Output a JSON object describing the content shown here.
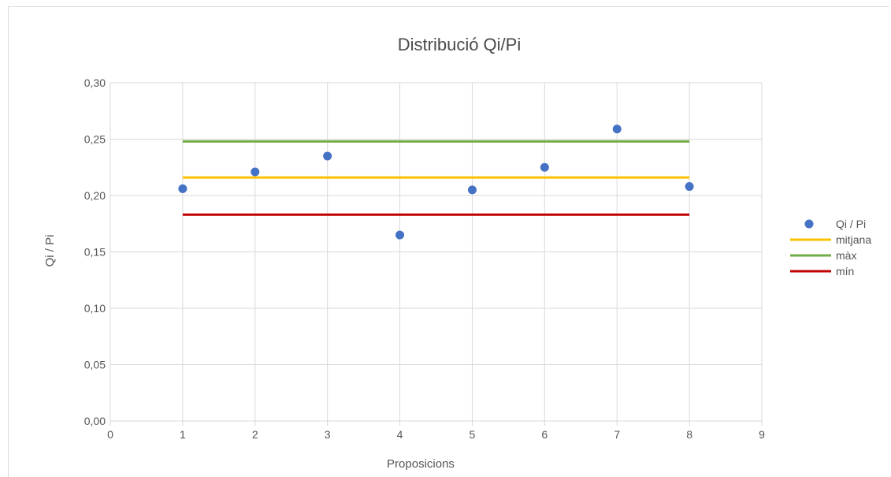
{
  "chart_data": {
    "type": "scatter",
    "title": "Distribució Qi/Pi",
    "xlabel": "Proposicions",
    "ylabel": "Qi / Pi",
    "xlim": [
      0,
      9
    ],
    "ylim": [
      0,
      0.3
    ],
    "x_ticks": [
      "0",
      "1",
      "2",
      "3",
      "4",
      "5",
      "6",
      "7",
      "8",
      "9"
    ],
    "y_ticks": [
      "0,00",
      "0,05",
      "0,10",
      "0,15",
      "0,20",
      "0,25",
      "0,30"
    ],
    "grid": true,
    "legend_position": "right",
    "series": [
      {
        "name": "Qi / Pi",
        "kind": "scatter",
        "color": "#4472c4",
        "x": [
          1,
          2,
          3,
          4,
          5,
          6,
          7,
          8
        ],
        "y": [
          0.206,
          0.221,
          0.235,
          0.165,
          0.205,
          0.225,
          0.259,
          0.208
        ]
      },
      {
        "name": "mitjana",
        "kind": "line",
        "color": "#ffc000",
        "x": [
          1,
          8
        ],
        "y": [
          0.216,
          0.216
        ]
      },
      {
        "name": "màx",
        "kind": "line",
        "color": "#70ad47",
        "x": [
          1,
          8
        ],
        "y": [
          0.248,
          0.248
        ]
      },
      {
        "name": "mín",
        "kind": "line",
        "color": "#c00000",
        "x": [
          1,
          8
        ],
        "y": [
          0.183,
          0.183
        ]
      }
    ]
  }
}
